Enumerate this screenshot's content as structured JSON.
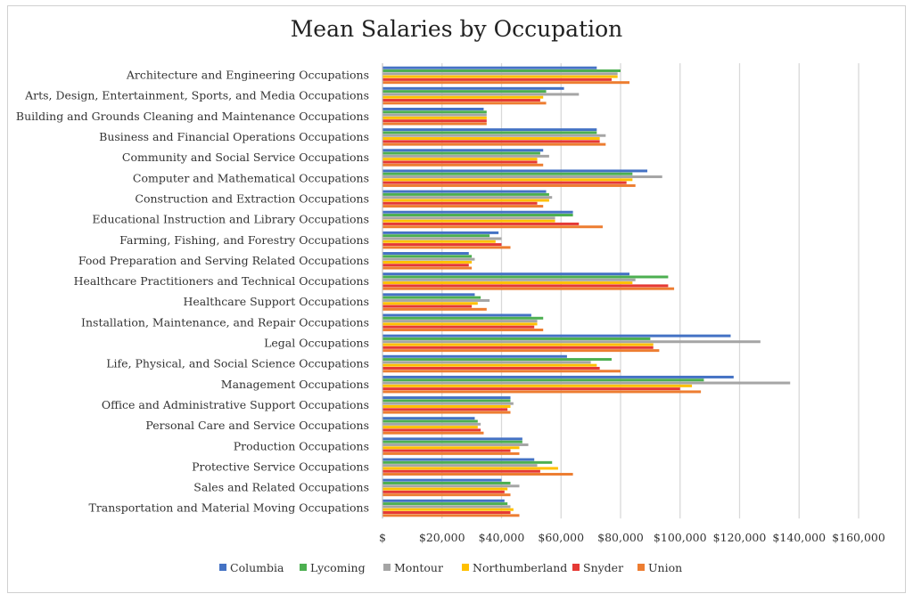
{
  "chart_data": {
    "type": "bar",
    "orientation": "horizontal",
    "title": "Mean Salaries by Occupation",
    "xlim": [
      0,
      160000
    ],
    "x_ticks": [
      "$",
      "$20,000",
      "$40,000",
      "$60,000",
      "$80,000",
      "$100,000",
      "$120,000",
      "$140,000",
      "$160,000"
    ],
    "grid": true,
    "legend_position": "bottom",
    "categories": [
      "Architecture and Engineering Occupations",
      "Arts, Design, Entertainment, Sports, and Media Occupations",
      "Building and Grounds Cleaning and Maintenance Occupations",
      "Business and Financial Operations Occupations",
      "Community and Social Service Occupations",
      "Computer and Mathematical Occupations",
      "Construction and Extraction Occupations",
      "Educational Instruction and Library Occupations",
      "Farming, Fishing, and Forestry Occupations",
      "Food Preparation and Serving Related Occupations",
      "Healthcare Practitioners and Technical Occupations",
      "Healthcare Support Occupations",
      "Installation, Maintenance, and Repair Occupations",
      "Legal Occupations",
      "Life, Physical, and Social Science Occupations",
      "Management Occupations",
      "Office and Administrative Support Occupations",
      "Personal Care and Service Occupations",
      "Production Occupations",
      "Protective Service Occupations",
      "Sales and Related Occupations",
      "Transportation and Material Moving Occupations"
    ],
    "series": [
      {
        "name": "Columbia",
        "color": "#4472c4",
        "values": [
          72000,
          61000,
          34000,
          72000,
          54000,
          89000,
          55000,
          64000,
          39000,
          29000,
          83000,
          31000,
          50000,
          117000,
          62000,
          118000,
          43000,
          31000,
          47000,
          51000,
          40000,
          41000
        ]
      },
      {
        "name": "Lycoming",
        "color": "#4caf50",
        "values": [
          80000,
          55000,
          35000,
          72000,
          53000,
          84000,
          56000,
          64000,
          36000,
          30000,
          96000,
          33000,
          54000,
          90000,
          77000,
          108000,
          43000,
          32000,
          47000,
          57000,
          43000,
          42000
        ]
      },
      {
        "name": "Montour",
        "color": "#a5a5a5",
        "values": [
          79000,
          66000,
          35000,
          75000,
          56000,
          94000,
          57000,
          58000,
          40000,
          31000,
          85000,
          36000,
          52000,
          127000,
          70000,
          137000,
          44000,
          33000,
          49000,
          52000,
          46000,
          43000
        ]
      },
      {
        "name": "Northumberland",
        "color": "#ffc000",
        "values": [
          79000,
          54000,
          35000,
          73000,
          52000,
          84000,
          56000,
          58000,
          38000,
          30000,
          84000,
          32000,
          52000,
          91000,
          72000,
          104000,
          43000,
          32000,
          46000,
          59000,
          42000,
          44000
        ]
      },
      {
        "name": "Snyder",
        "color": "#e53935",
        "values": [
          77000,
          53000,
          35000,
          73000,
          52000,
          82000,
          52000,
          66000,
          40000,
          29000,
          96000,
          30000,
          51000,
          91000,
          73000,
          100000,
          42000,
          33000,
          43000,
          53000,
          41000,
          43000
        ]
      },
      {
        "name": "Union",
        "color": "#ed7d31",
        "values": [
          83000,
          55000,
          35000,
          75000,
          54000,
          85000,
          54000,
          74000,
          43000,
          30000,
          98000,
          35000,
          54000,
          93000,
          80000,
          107000,
          43000,
          34000,
          46000,
          64000,
          43000,
          46000
        ]
      }
    ]
  }
}
